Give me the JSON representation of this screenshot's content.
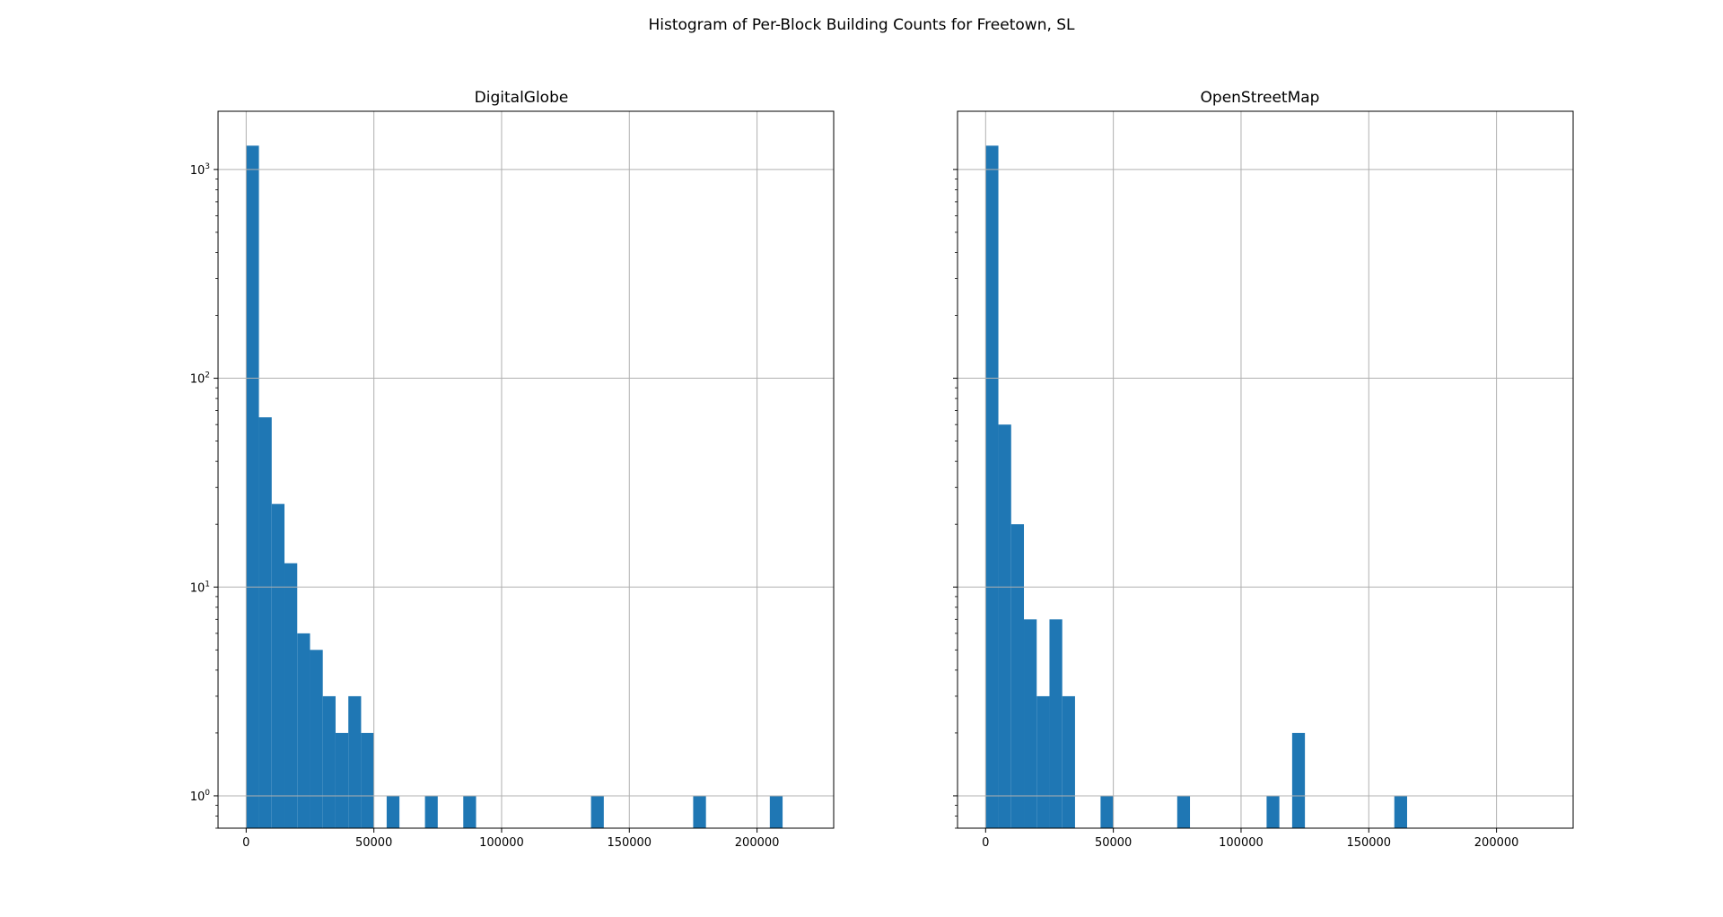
{
  "figure": {
    "suptitle": "Histogram of Per-Block Building Counts for Freetown, SL"
  },
  "chart_data": [
    {
      "type": "bar",
      "title": "DigitalGlobe",
      "xlabel": "",
      "ylabel": "",
      "yscale": "log",
      "xlim": [
        -11000,
        230000
      ],
      "ylim": [
        0.7,
        1900
      ],
      "xticks": [
        "0",
        "50000",
        "100000",
        "150000",
        "200000"
      ],
      "yticks": [
        {
          "base": "10",
          "exp": "0"
        },
        {
          "base": "10",
          "exp": "1"
        },
        {
          "base": "10",
          "exp": "2"
        },
        {
          "base": "10",
          "exp": "3"
        }
      ],
      "grid": true,
      "color": "#1f77b4",
      "bin_edges_start": 0,
      "bin_width": 5000,
      "counts": [
        1300,
        65,
        25,
        13,
        6,
        5,
        3,
        2,
        3,
        2,
        0,
        1,
        0,
        0,
        1,
        0,
        0,
        1,
        0,
        0,
        0,
        0,
        0,
        0,
        0,
        0,
        0,
        1,
        0,
        0,
        0,
        0,
        0,
        0,
        0,
        1,
        0,
        0,
        0,
        0,
        0,
        1
      ]
    },
    {
      "type": "bar",
      "title": "OpenStreetMap",
      "xlabel": "",
      "ylabel": "",
      "yscale": "log",
      "xlim": [
        -11000,
        230000
      ],
      "ylim": [
        0.7,
        1900
      ],
      "xticks": [
        "0",
        "50000",
        "100000",
        "150000",
        "200000"
      ],
      "yticks": [],
      "grid": true,
      "color": "#1f77b4",
      "bin_edges_start": 0,
      "bin_width": 5000,
      "counts": [
        1300,
        60,
        20,
        7,
        3,
        7,
        3,
        0,
        0,
        1,
        0,
        0,
        0,
        0,
        0,
        1,
        0,
        0,
        0,
        0,
        0,
        0,
        1,
        0,
        2,
        0,
        0,
        0,
        0,
        0,
        0,
        0,
        1
      ]
    }
  ]
}
